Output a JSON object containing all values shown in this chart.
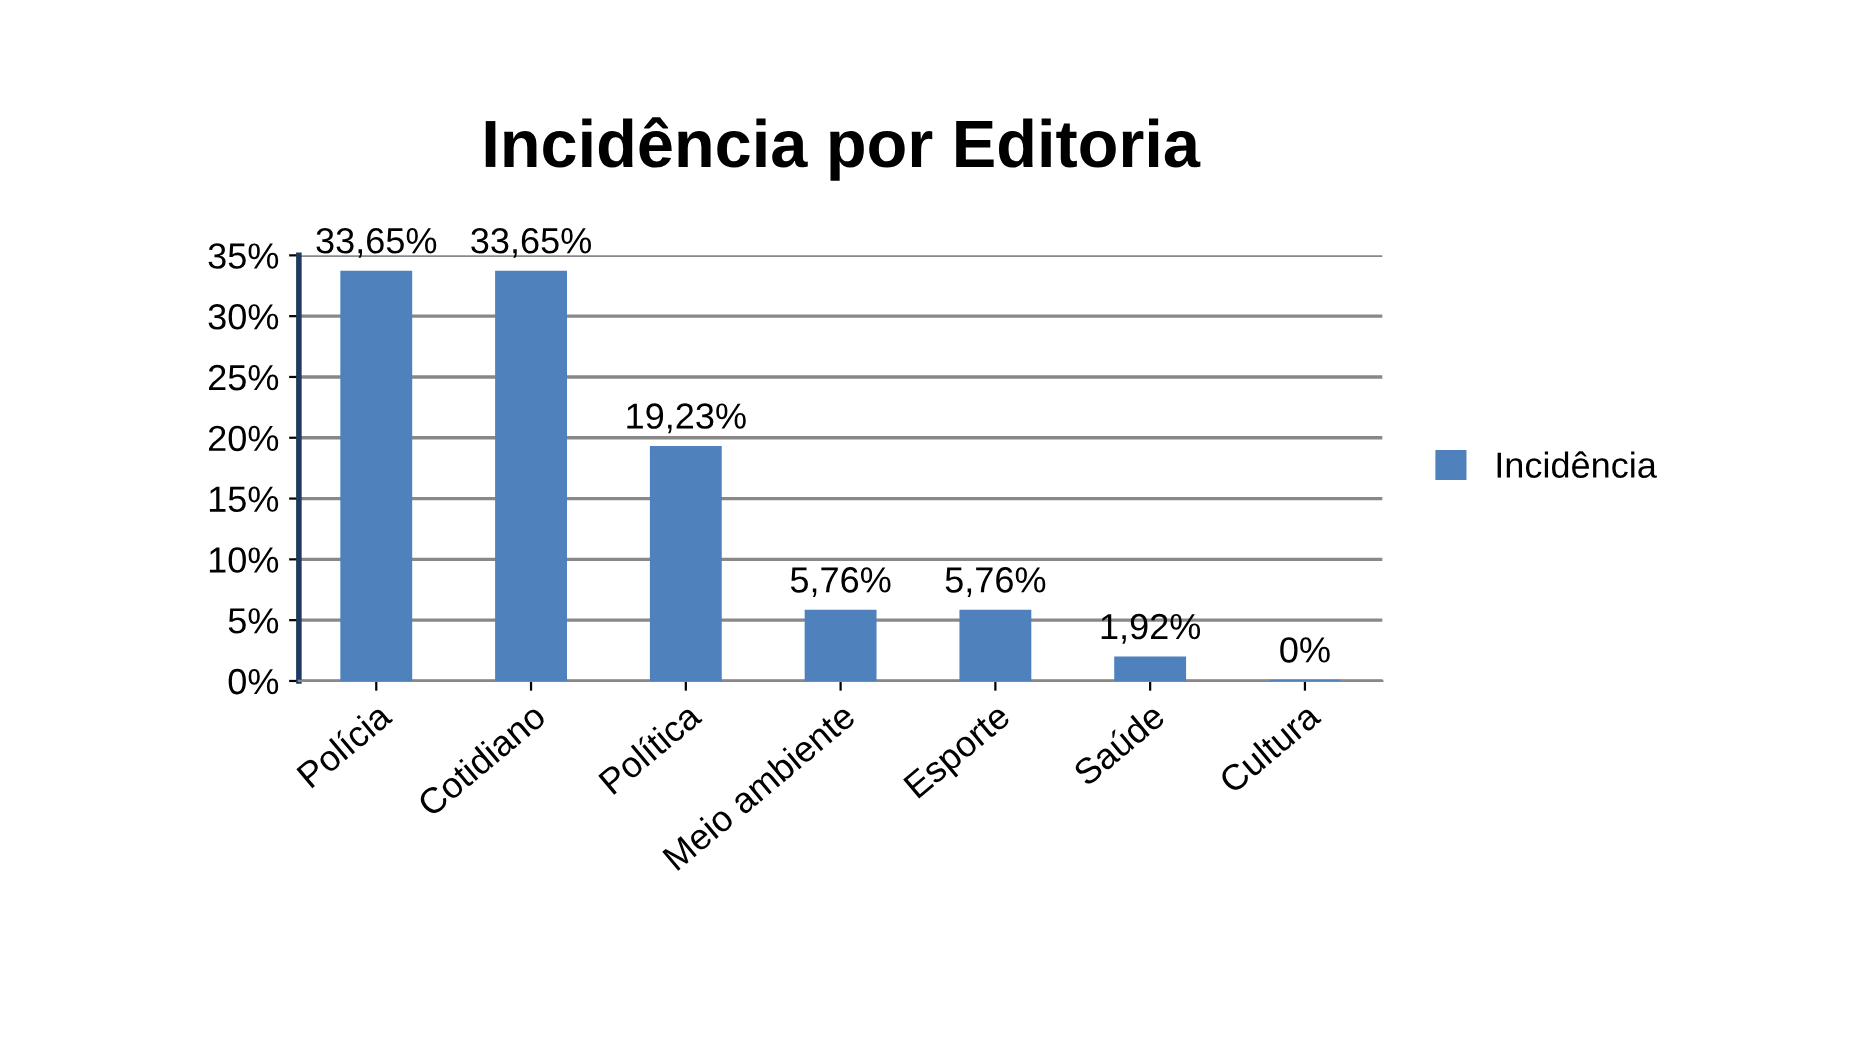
{
  "chart_data": {
    "type": "bar",
    "title": "Incidência por Editoria",
    "categories": [
      "Polícia",
      "Cotidiano",
      "Política",
      "Meio ambiente",
      "Esporte",
      "Saúde",
      "Cultura"
    ],
    "series": [
      {
        "name": "Incidência",
        "color": "#4f81bd",
        "values": [
          33.65,
          33.65,
          19.23,
          5.76,
          5.76,
          1.92,
          0
        ],
        "value_labels": [
          "33,65%",
          "33,65%",
          "19,23%",
          "5,76%",
          "5,76%",
          "1,92%",
          "0%"
        ]
      }
    ],
    "ylim": [
      0,
      35
    ],
    "yticks": [
      {
        "value": 0,
        "label": "0%"
      },
      {
        "value": 5,
        "label": "5%"
      },
      {
        "value": 10,
        "label": "10%"
      },
      {
        "value": 15,
        "label": "15%"
      },
      {
        "value": 20,
        "label": "20%"
      },
      {
        "value": 25,
        "label": "25%"
      },
      {
        "value": 30,
        "label": "30%"
      },
      {
        "value": 35,
        "label": "35%"
      }
    ],
    "grid": "y",
    "legend": "right"
  }
}
